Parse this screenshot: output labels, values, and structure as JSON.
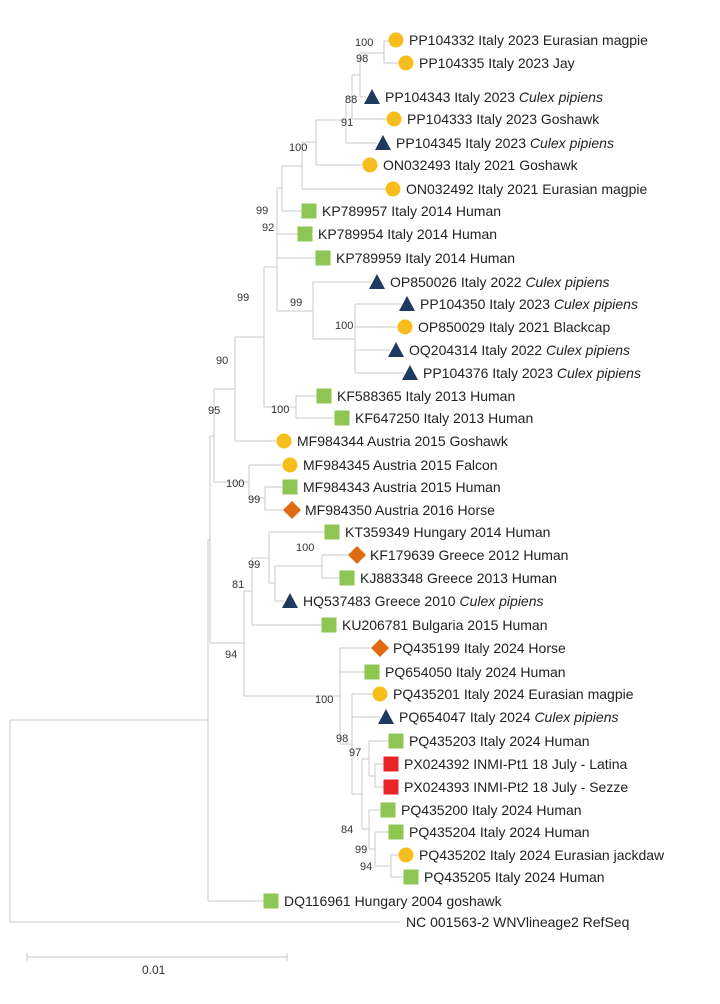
{
  "colors": {
    "circle": "#F7BD1C",
    "triangle": "#1F3A5F",
    "square": "#8DC653",
    "diamond": "#E06B15",
    "redsquare": "#E8232A",
    "branch": "#c8c8c8"
  },
  "taxa": [
    {
      "id": "PP104332",
      "text": "PP104332 Italy 2023 Eurasian magpie",
      "italic": "",
      "marker": "circle"
    },
    {
      "id": "PP104335",
      "text": "PP104335 Italy 2023 Jay",
      "italic": "",
      "marker": "circle"
    },
    {
      "id": "PP104343",
      "text": "PP104343 Italy 2023 ",
      "italic": "Culex pipiens",
      "marker": "triangle"
    },
    {
      "id": "PP104333",
      "text": "PP104333 Italy 2023 Goshawk",
      "italic": "",
      "marker": "circle"
    },
    {
      "id": "PP104345",
      "text": "PP104345 Italy 2023 ",
      "italic": "Culex pipiens",
      "marker": "triangle"
    },
    {
      "id": "ON032493",
      "text": "ON032493 Italy 2021 Goshawk",
      "italic": "",
      "marker": "circle"
    },
    {
      "id": "ON032492",
      "text": "ON032492 Italy 2021 Eurasian magpie",
      "italic": "",
      "marker": "circle"
    },
    {
      "id": "KP789957",
      "text": "KP789957 Italy 2014 Human",
      "italic": "",
      "marker": "square"
    },
    {
      "id": "KP789954",
      "text": "KP789954 Italy 2014 Human",
      "italic": "",
      "marker": "square"
    },
    {
      "id": "KP789959",
      "text": "KP789959 Italy 2014 Human",
      "italic": "",
      "marker": "square"
    },
    {
      "id": "OP850026",
      "text": "OP850026 Italy 2022 ",
      "italic": "Culex pipiens",
      "marker": "triangle"
    },
    {
      "id": "PP104350",
      "text": "PP104350 Italy 2023 ",
      "italic": "Culex pipiens",
      "marker": "triangle"
    },
    {
      "id": "OP850029",
      "text": "OP850029 Italy 2021 Blackcap",
      "italic": "",
      "marker": "circle"
    },
    {
      "id": "OQ204314",
      "text": "OQ204314 Italy 2022 ",
      "italic": "Culex pipiens",
      "marker": "triangle"
    },
    {
      "id": "PP104376",
      "text": "PP104376 Italy 2023 ",
      "italic": "Culex pipiens",
      "marker": "triangle"
    },
    {
      "id": "KF588365",
      "text": "KF588365 Italy 2013 Human",
      "italic": "",
      "marker": "square"
    },
    {
      "id": "KF647250",
      "text": "KF647250 Italy 2013 Human",
      "italic": "",
      "marker": "square"
    },
    {
      "id": "MF984344",
      "text": "MF984344 Austria 2015 Goshawk",
      "italic": "",
      "marker": "circle"
    },
    {
      "id": "MF984345",
      "text": "MF984345 Austria 2015 Falcon",
      "italic": "",
      "marker": "circle"
    },
    {
      "id": "MF984343",
      "text": "MF984343 Austria 2015 Human",
      "italic": "",
      "marker": "square"
    },
    {
      "id": "MF984350",
      "text": "MF984350 Austria 2016 Horse",
      "italic": "",
      "marker": "diamond"
    },
    {
      "id": "KT359349",
      "text": "KT359349 Hungary 2014 Human",
      "italic": "",
      "marker": "square"
    },
    {
      "id": "KF179639",
      "text": "KF179639 Greece 2012 Human",
      "italic": "",
      "marker": "diamond"
    },
    {
      "id": "KJ883348",
      "text": "KJ883348 Greece 2013 Human",
      "italic": "",
      "marker": "square"
    },
    {
      "id": "HQ537483",
      "text": "HQ537483 Greece 2010 ",
      "italic": "Culex pipiens",
      "marker": "triangle"
    },
    {
      "id": "KU206781",
      "text": "KU206781 Bulgaria 2015 Human",
      "italic": "",
      "marker": "square"
    },
    {
      "id": "PQ435199",
      "text": "PQ435199 Italy 2024 Horse",
      "italic": "",
      "marker": "diamond"
    },
    {
      "id": "PQ654050",
      "text": "PQ654050 Italy 2024 Human",
      "italic": "",
      "marker": "square"
    },
    {
      "id": "PQ435201",
      "text": "PQ435201 Italy 2024 Eurasian magpie",
      "italic": "",
      "marker": "circle"
    },
    {
      "id": "PQ654047",
      "text": "PQ654047 Italy 2024 ",
      "italic": "Culex pipiens",
      "marker": "triangle"
    },
    {
      "id": "PQ435203",
      "text": "PQ435203 Italy 2024 Human",
      "italic": "",
      "marker": "square"
    },
    {
      "id": "PX024392",
      "text": "PX024392 INMI-Pt1 18 July - Latina",
      "italic": "",
      "marker": "redsquare"
    },
    {
      "id": "PX024393",
      "text": "PX024393 INMI-Pt2 18 July - Sezze",
      "italic": "",
      "marker": "redsquare"
    },
    {
      "id": "PQ435200",
      "text": "PQ435200 Italy 2024 Human",
      "italic": "",
      "marker": "square"
    },
    {
      "id": "PQ435204",
      "text": "PQ435204 Italy 2024 Human",
      "italic": "",
      "marker": "square"
    },
    {
      "id": "PQ435202",
      "text": "PQ435202 Italy 2024 Eurasian jackdaw",
      "italic": "",
      "marker": "circle"
    },
    {
      "id": "PQ435205",
      "text": "PQ435205 Italy 2024 Human",
      "italic": "",
      "marker": "square"
    },
    {
      "id": "DQ116961",
      "text": "DQ116961 Hungary 2004 goshawk",
      "italic": "",
      "marker": "square"
    },
    {
      "id": "NC001563",
      "text": "NC 001563-2 WNVlineage2 RefSeq",
      "italic": "",
      "marker": "none"
    }
  ],
  "bootstrap": [
    "100",
    "98",
    "88",
    "91",
    "100",
    "99",
    "92",
    "99",
    "100",
    "99",
    "90",
    "100",
    "95",
    "100",
    "99",
    "100",
    "99",
    "81",
    "94",
    "100",
    "98",
    "97",
    "84",
    "99",
    "94"
  ],
  "scale_bar": {
    "label": "0.01"
  }
}
